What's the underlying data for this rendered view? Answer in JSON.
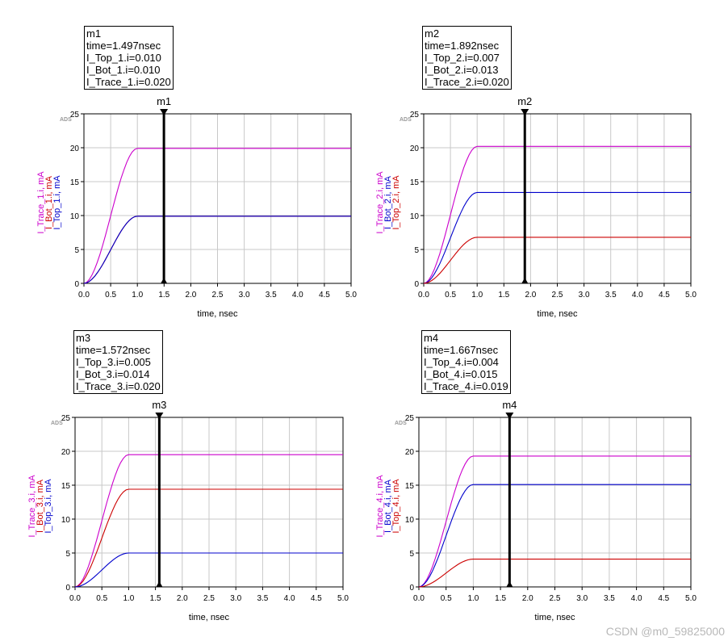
{
  "chart_data": [
    {
      "type": "line",
      "tag": "ADS",
      "xlabel": "time, nsec",
      "xlim": [
        0,
        5
      ],
      "ylim": [
        0,
        25
      ],
      "xticks": [
        "0.0",
        "0.5",
        "1.0",
        "1.5",
        "2.0",
        "2.5",
        "3.0",
        "3.5",
        "4.0",
        "4.5",
        "5.0"
      ],
      "yticks": [
        "0",
        "5",
        "10",
        "15",
        "20",
        "25"
      ],
      "grid": true,
      "marker": {
        "name": "m1",
        "x": 1.497,
        "lines": [
          "m1",
          "time=1.497nsec",
          "I_Top_1.i=0.010",
          "I_Bot_1.i=0.010",
          "I_Trace_1.i=0.020"
        ]
      },
      "series": [
        {
          "name": "I_Trace_1.i, mA",
          "color": "#cc00cc",
          "final": 19.9
        },
        {
          "name": "I_Bot_1.i, mA",
          "color": "#cc0000",
          "final": 9.9
        },
        {
          "name": "I_Top_1.i, mA",
          "color": "#0000cc",
          "final": 9.9
        }
      ]
    },
    {
      "type": "line",
      "tag": "ADS",
      "xlabel": "time, nsec",
      "xlim": [
        0,
        5
      ],
      "ylim": [
        0,
        25
      ],
      "xticks": [
        "0.0",
        "0.5",
        "1.0",
        "1.5",
        "2.0",
        "2.5",
        "3.0",
        "3.5",
        "4.0",
        "4.5",
        "5.0"
      ],
      "yticks": [
        "0",
        "5",
        "10",
        "15",
        "20",
        "25"
      ],
      "grid": true,
      "marker": {
        "name": "m2",
        "x": 1.892,
        "lines": [
          "m2",
          "time=1.892nsec",
          "I_Top_2.i=0.007",
          "I_Bot_2.i=0.013",
          "I_Trace_2.i=0.020"
        ]
      },
      "series": [
        {
          "name": "I_Trace_2.i, mA",
          "color": "#cc00cc",
          "final": 20.2
        },
        {
          "name": "I_Bot_2.i, mA",
          "color": "#0000cc",
          "final": 13.4
        },
        {
          "name": "I_Top_2.i, mA",
          "color": "#cc0000",
          "final": 6.8
        }
      ]
    },
    {
      "type": "line",
      "tag": "ADS",
      "xlabel": "time, nsec",
      "xlim": [
        0,
        5
      ],
      "ylim": [
        0,
        25
      ],
      "xticks": [
        "0.0",
        "0.5",
        "1.0",
        "1.5",
        "2.0",
        "2.5",
        "3.0",
        "3.5",
        "4.0",
        "4.5",
        "5.0"
      ],
      "yticks": [
        "0",
        "5",
        "10",
        "15",
        "20",
        "25"
      ],
      "grid": true,
      "marker": {
        "name": "m3",
        "x": 1.572,
        "lines": [
          "m3",
          "time=1.572nsec",
          "I_Top_3.i=0.005",
          "I_Bot_3.i=0.014",
          "I_Trace_3.i=0.020"
        ]
      },
      "series": [
        {
          "name": "I_Trace_3.i, mA",
          "color": "#cc00cc",
          "final": 19.5
        },
        {
          "name": "I_Bot_3.i, mA",
          "color": "#cc0000",
          "final": 14.4
        },
        {
          "name": "I_Top_3.i, mA",
          "color": "#0000cc",
          "final": 5.0
        }
      ]
    },
    {
      "type": "line",
      "tag": "ADS",
      "xlabel": "time, nsec",
      "xlim": [
        0,
        5
      ],
      "ylim": [
        0,
        25
      ],
      "xticks": [
        "0.0",
        "0.5",
        "1.0",
        "1.5",
        "2.0",
        "2.5",
        "3.0",
        "3.5",
        "4.0",
        "4.5",
        "5.0"
      ],
      "yticks": [
        "0",
        "5",
        "10",
        "15",
        "20",
        "25"
      ],
      "grid": true,
      "marker": {
        "name": "m4",
        "x": 1.667,
        "lines": [
          "m4",
          "time=1.667nsec",
          "I_Top_4.i=0.004",
          "I_Bot_4.i=0.015",
          "I_Trace_4.i=0.019"
        ]
      },
      "series": [
        {
          "name": "I_Trace_4.i, mA",
          "color": "#cc00cc",
          "final": 19.3
        },
        {
          "name": "I_Bot_4.i, mA",
          "color": "#0000cc",
          "final": 15.1
        },
        {
          "name": "I_Top_4.i, mA",
          "color": "#cc0000",
          "final": 4.1
        }
      ]
    }
  ],
  "watermark": "CSDN @m0_59825000"
}
